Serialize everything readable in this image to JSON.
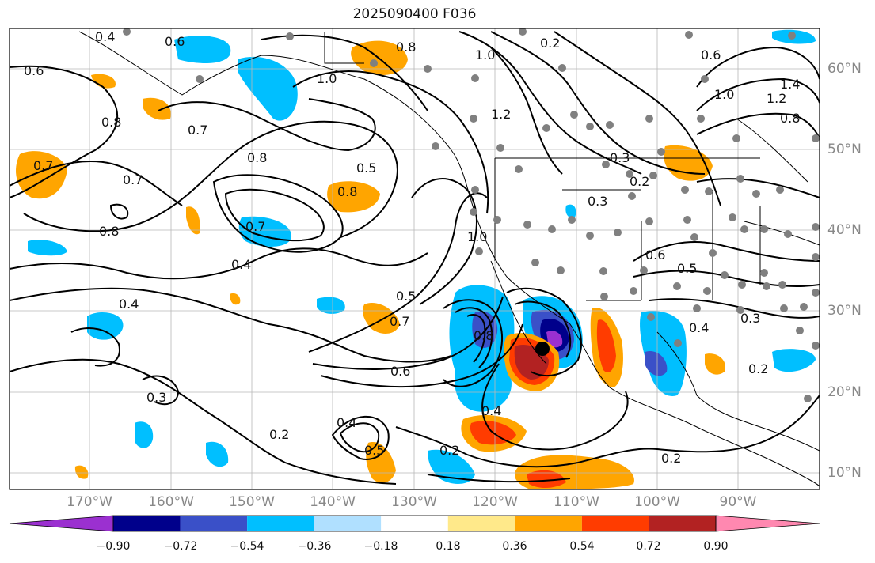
{
  "title": "2025090400 F036",
  "lon_labels": [
    "170°W",
    "160°W",
    "150°W",
    "140°W",
    "130°W",
    "120°W",
    "110°W",
    "100°W",
    "90°W"
  ],
  "lat_labels": [
    "60°N",
    "50°N",
    "40°N",
    "30°N",
    "20°N",
    "10°N"
  ],
  "colorbar": {
    "ticks": [
      "−0.90",
      "−0.72",
      "−0.54",
      "−0.36",
      "−0.18",
      "0.18",
      "0.36",
      "0.54",
      "0.72",
      "0.90"
    ],
    "colors": [
      "#9b30d0",
      "#00008b",
      "#3a50c8",
      "#00bfff",
      "#b0e0ff",
      "#ffffff",
      "#ffe98a",
      "#ffa500",
      "#ff3c00",
      "#b22222",
      "#ff88b0"
    ]
  },
  "contour_labels": [
    {
      "text": "0.4"
    },
    {
      "text": "0.6"
    },
    {
      "text": "0.8"
    },
    {
      "text": "0.6"
    },
    {
      "text": "0.7"
    },
    {
      "text": "0.8"
    },
    {
      "text": "0.7"
    },
    {
      "text": "0.8"
    },
    {
      "text": "0.5"
    },
    {
      "text": "0.8"
    },
    {
      "text": "0.7"
    },
    {
      "text": "0.4"
    },
    {
      "text": "0.4"
    },
    {
      "text": "0.3"
    },
    {
      "text": "0.2"
    },
    {
      "text": "0.5"
    },
    {
      "text": "0.7"
    },
    {
      "text": "0.6"
    },
    {
      "text": "0.4"
    },
    {
      "text": "0.2"
    },
    {
      "text": "1.0"
    },
    {
      "text": "1.0"
    },
    {
      "text": "1.2"
    },
    {
      "text": "0.2"
    },
    {
      "text": "0.3"
    },
    {
      "text": "0.2"
    },
    {
      "text": "0.3"
    },
    {
      "text": "0.6"
    },
    {
      "text": "0.5"
    },
    {
      "text": "0.4"
    },
    {
      "text": "0.3"
    },
    {
      "text": "0.2"
    },
    {
      "text": "0.2"
    },
    {
      "text": "1.4"
    },
    {
      "text": "1.2"
    },
    {
      "text": "1.0"
    },
    {
      "text": "0.8"
    },
    {
      "text": "0.6"
    },
    {
      "text": "0.8"
    },
    {
      "text": "1.0"
    },
    {
      "text": "0.8"
    },
    {
      "text": "0.4"
    },
    {
      "text": "0.5"
    },
    {
      "text": "0.7"
    }
  ]
}
